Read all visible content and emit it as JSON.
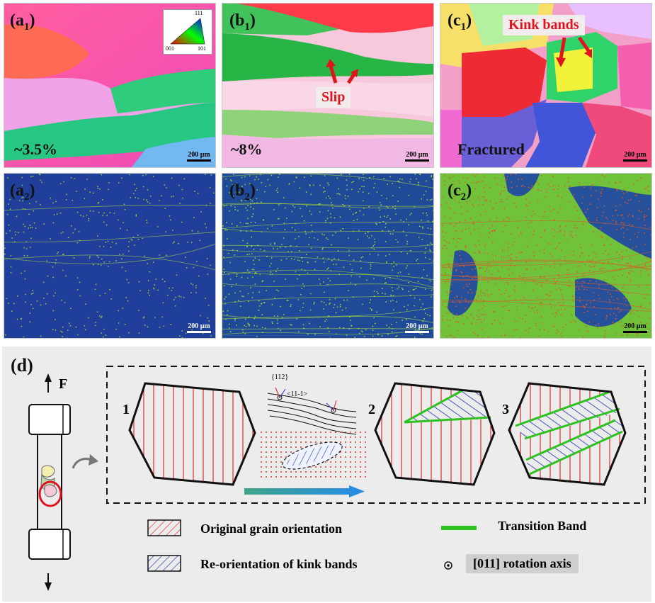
{
  "panels": {
    "a1": {
      "label": "a",
      "sub": "1",
      "strain": "~3.5%",
      "scale": "200 μm"
    },
    "b1": {
      "label": "b",
      "sub": "1",
      "strain": "~8%",
      "scale": "200 μm",
      "callout": "Slip"
    },
    "c1": {
      "label": "c",
      "sub": "1",
      "strain": "Fractured",
      "scale": "200 μm",
      "callout": "Kink bands"
    },
    "a2": {
      "label": "a",
      "sub": "2",
      "scale": "200 μm"
    },
    "b2": {
      "label": "b",
      "sub": "2",
      "scale": "200 μm"
    },
    "c2": {
      "label": "c",
      "sub": "2",
      "scale": "200 μm"
    }
  },
  "ipf_key": {
    "top": "111",
    "left": "001",
    "right": "101"
  },
  "schematic": {
    "label": "d",
    "force": "F",
    "steps": [
      "1",
      "2",
      "3"
    ],
    "plane": "{112}",
    "direction": "<11-1>"
  },
  "legend": {
    "original": "Original grain orientation",
    "reorient": "Re-orientation of kink bands",
    "transition": "Transition Band",
    "axis": "[011] rotation axis"
  },
  "colors": {
    "original_hatch": "#e32626",
    "kink_hatch": "#1c2fb0",
    "transition_band": "#2ec21f",
    "kam_background": "#1f3f9a",
    "kam_high": "#d8e236"
  }
}
